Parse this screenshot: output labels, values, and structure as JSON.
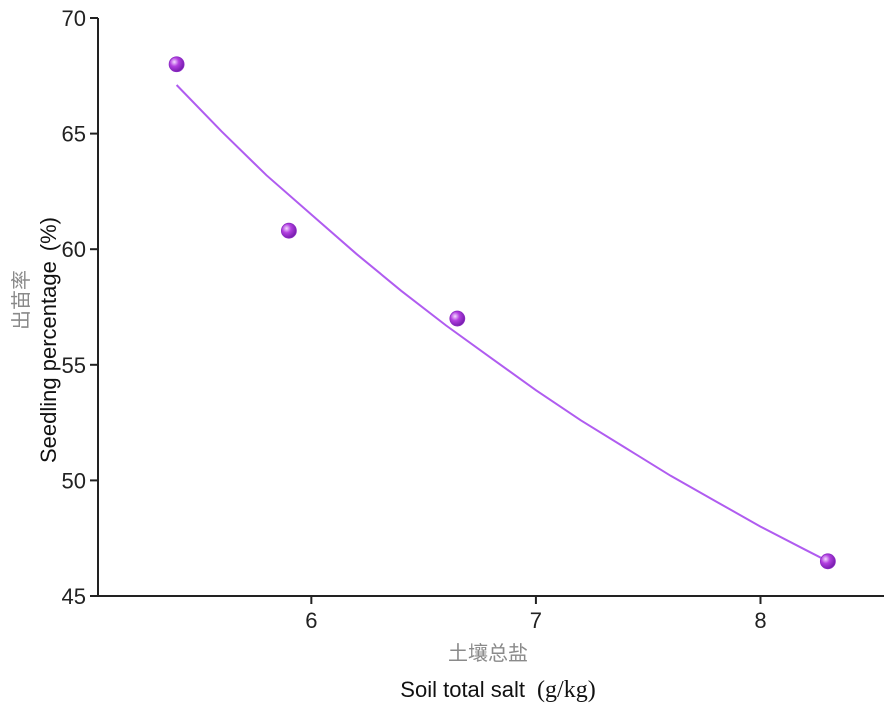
{
  "chart_data": {
    "type": "scatter",
    "xlabel_cn": "土壤总盐",
    "xlabel_en": "Soil total salt",
    "xlabel_unit": "(g/kg)",
    "ylabel_cn": "出苗率",
    "ylabel_en": "Seedling percentage",
    "ylabel_unit": "(%)",
    "xlim": [
      5.05,
      8.55
    ],
    "ylim": [
      45,
      70
    ],
    "xticks": [
      6,
      7,
      8
    ],
    "yticks": [
      45,
      50,
      55,
      60,
      65,
      70
    ],
    "points": [
      {
        "x": 5.4,
        "y": 68.0
      },
      {
        "x": 5.9,
        "y": 60.8
      },
      {
        "x": 6.65,
        "y": 57.0
      },
      {
        "x": 8.3,
        "y": 46.5
      }
    ],
    "fit": {
      "x": [
        5.4,
        5.6,
        5.8,
        6.0,
        6.2,
        6.4,
        6.6,
        6.8,
        7.0,
        7.2,
        7.4,
        7.6,
        7.8,
        8.0,
        8.2,
        8.3
      ],
      "y": [
        67.1,
        65.1,
        63.2,
        61.5,
        59.8,
        58.2,
        56.7,
        55.3,
        53.9,
        52.6,
        51.4,
        50.2,
        49.1,
        48.0,
        47.0,
        46.5
      ]
    },
    "colors": {
      "point": "#b23fe0",
      "fit_line": "#b05cf0",
      "axis": "#222222"
    }
  }
}
